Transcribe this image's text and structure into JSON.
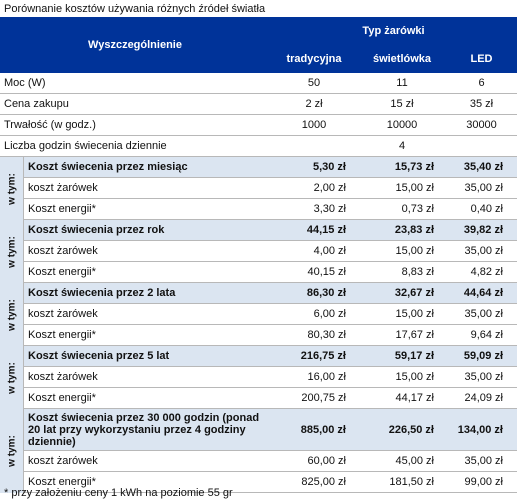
{
  "title": "Porównanie kosztów używania różnych źródeł światła",
  "header": {
    "col0": "Wyszczególnienie",
    "group": "Typ żarówki",
    "cols": [
      "tradycyjna",
      "świetlówka",
      "LED"
    ]
  },
  "basic_rows": [
    {
      "label": "Moc (W)",
      "values": [
        "50",
        "11",
        "6"
      ]
    },
    {
      "label": "Cena zakupu",
      "values": [
        "2 zł",
        "15 zł",
        "35 zł"
      ]
    },
    {
      "label": "Trwałość (w godz.)",
      "values": [
        "1000",
        "10000",
        "30000"
      ]
    }
  ],
  "hours_row": {
    "label": "Liczba godzin świecenia dziennie",
    "value": "4"
  },
  "w_tym": "w tym:",
  "groups": [
    {
      "label": "Koszt świecenia przez miesiąc",
      "values": [
        "5,30 zł",
        "15,73 zł",
        "35,40 zł"
      ],
      "sub": [
        {
          "label": "koszt żarówek",
          "values": [
            "2,00 zł",
            "15,00 zł",
            "35,00 zł"
          ]
        },
        {
          "label": "Koszt energii*",
          "values": [
            "3,30 zł",
            "0,73 zł",
            "0,40 zł"
          ]
        }
      ]
    },
    {
      "label": "Koszt świecenia przez rok",
      "values": [
        "44,15 zł",
        "23,83 zł",
        "39,82 zł"
      ],
      "sub": [
        {
          "label": "koszt żarówek",
          "values": [
            "4,00 zł",
            "15,00 zł",
            "35,00 zł"
          ]
        },
        {
          "label": "Koszt energii*",
          "values": [
            "40,15 zł",
            "8,83 zł",
            "4,82 zł"
          ]
        }
      ]
    },
    {
      "label": "Koszt świecenia przez 2 lata",
      "values": [
        "86,30 zł",
        "32,67 zł",
        "44,64 zł"
      ],
      "sub": [
        {
          "label": "koszt żarówek",
          "values": [
            "6,00 zł",
            "15,00 zł",
            "35,00 zł"
          ]
        },
        {
          "label": "Koszt energii*",
          "values": [
            "80,30 zł",
            "17,67 zł",
            "9,64 zł"
          ]
        }
      ]
    },
    {
      "label": "Koszt świecenia przez 5 lat",
      "values": [
        "216,75 zł",
        "59,17 zł",
        "59,09 zł"
      ],
      "sub": [
        {
          "label": "koszt żarówek",
          "values": [
            "16,00 zł",
            "15,00 zł",
            "35,00 zł"
          ]
        },
        {
          "label": "Koszt energii*",
          "values": [
            "200,75 zł",
            "44,17 zł",
            "24,09 zł"
          ]
        }
      ]
    },
    {
      "label": "Koszt świecenia przez 30 000 godzin (ponad 20 lat przy wykorzystaniu przez 4 godziny  dziennie)",
      "values": [
        "885,00 zł",
        "226,50 zł",
        "134,00 zł"
      ],
      "sub": [
        {
          "label": "koszt żarówek",
          "values": [
            "60,00 zł",
            "45,00 zł",
            "35,00 zł"
          ]
        },
        {
          "label": "Koszt energii*",
          "values": [
            "825,00 zł",
            "181,50 zł",
            "99,00 zł"
          ]
        }
      ]
    }
  ],
  "footnote": "* przy założeniu ceny 1 kWh na poziomie 55 gr"
}
